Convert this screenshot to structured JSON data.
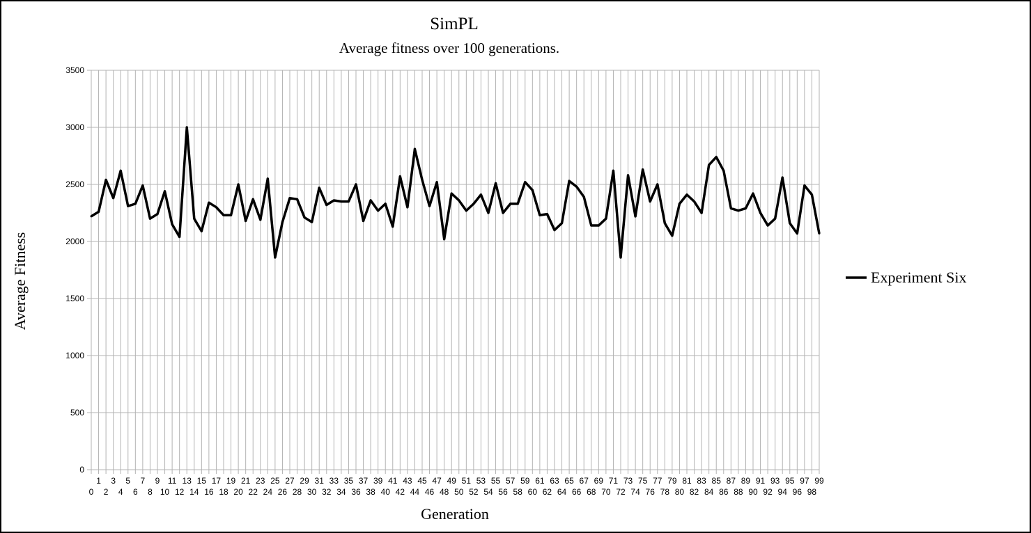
{
  "chart_data": {
    "type": "line",
    "title": "SimPL",
    "subtitle": "Average fitness over 100 generations.",
    "xlabel": "Generation",
    "ylabel": "Average Fitness",
    "ylim": [
      0,
      3500
    ],
    "yticks": [
      0,
      500,
      1000,
      1500,
      2000,
      2500,
      3000,
      3500
    ],
    "grid": true,
    "legend_position": "right",
    "categories": [
      0,
      1,
      2,
      3,
      4,
      5,
      6,
      7,
      8,
      9,
      10,
      11,
      12,
      13,
      14,
      15,
      16,
      17,
      18,
      19,
      20,
      21,
      22,
      23,
      24,
      25,
      26,
      27,
      28,
      29,
      30,
      31,
      32,
      33,
      34,
      35,
      36,
      37,
      38,
      39,
      40,
      41,
      42,
      43,
      44,
      45,
      46,
      47,
      48,
      49,
      50,
      51,
      52,
      53,
      54,
      55,
      56,
      57,
      58,
      59,
      60,
      61,
      62,
      63,
      64,
      65,
      66,
      67,
      68,
      69,
      70,
      71,
      72,
      73,
      74,
      75,
      76,
      77,
      78,
      79,
      80,
      81,
      82,
      83,
      84,
      85,
      86,
      87,
      88,
      89,
      90,
      91,
      92,
      93,
      94,
      95,
      96,
      97,
      98,
      99
    ],
    "series": [
      {
        "name": "Experiment Six",
        "color": "#000000",
        "values": [
          2220,
          2260,
          2540,
          2380,
          2620,
          2310,
          2330,
          2490,
          2200,
          2240,
          2440,
          2150,
          2040,
          3000,
          2200,
          2090,
          2340,
          2300,
          2230,
          2230,
          2500,
          2180,
          2370,
          2190,
          2550,
          1860,
          2170,
          2380,
          2370,
          2210,
          2170,
          2470,
          2320,
          2360,
          2350,
          2350,
          2500,
          2180,
          2360,
          2270,
          2330,
          2130,
          2570,
          2300,
          2810,
          2540,
          2310,
          2520,
          2020,
          2420,
          2360,
          2270,
          2330,
          2410,
          2250,
          2510,
          2250,
          2330,
          2330,
          2520,
          2450,
          2230,
          2240,
          2100,
          2160,
          2530,
          2480,
          2390,
          2140,
          2140,
          2200,
          2620,
          1860,
          2580,
          2220,
          2630,
          2350,
          2500,
          2160,
          2050,
          2330,
          2410,
          2350,
          2250,
          2670,
          2740,
          2620,
          2290,
          2270,
          2290,
          2420,
          2250,
          2140,
          2200,
          2560,
          2160,
          2070,
          2490,
          2410,
          2070
        ]
      }
    ]
  }
}
